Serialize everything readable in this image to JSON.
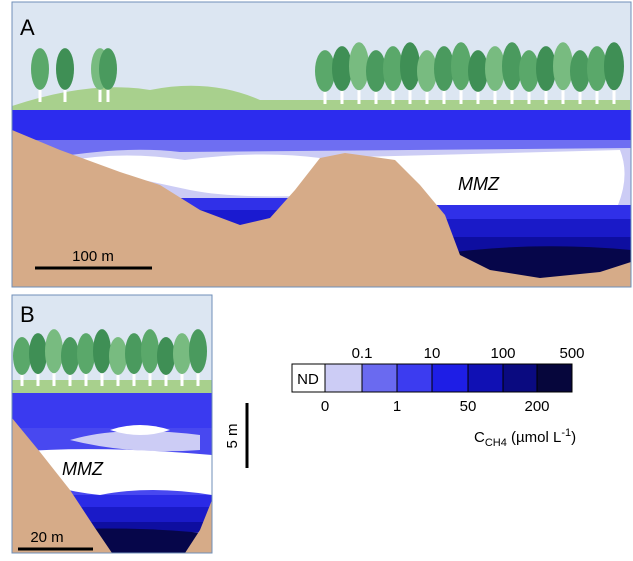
{
  "panels": [
    {
      "label": "A",
      "zone_label": "MMZ",
      "scale_bar": "100 m"
    },
    {
      "label": "B",
      "zone_label": "MMZ",
      "scale_bar": "20 m",
      "depth_scale_bar": "5 m"
    }
  ],
  "legend": {
    "no_data": "ND",
    "upper_labels": [
      "0.1",
      "10",
      "100",
      "500"
    ],
    "lower_labels": [
      "0",
      "1",
      "50",
      "200"
    ],
    "title": {
      "symbol": "C",
      "subscript": "CH4",
      "unit_start": " (µmol L",
      "unit_superscript": "-1",
      "unit_end": ")"
    }
  }
}
